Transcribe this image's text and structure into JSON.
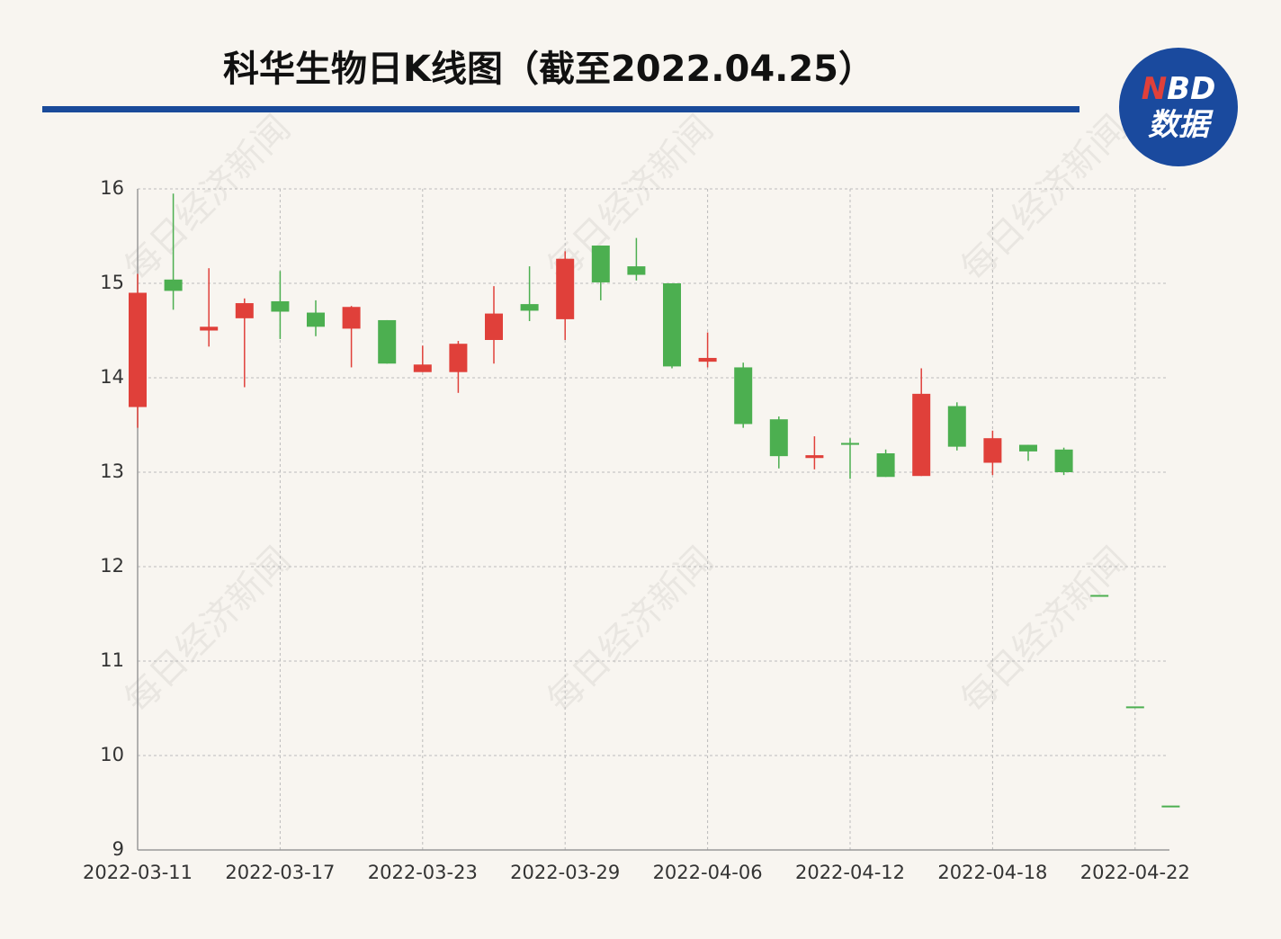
{
  "chart_data": {
    "type": "candlestick",
    "title": "科华生物日K线图（截至2022.04.25）",
    "logo": {
      "top": [
        "N",
        "BD"
      ],
      "bottom": "数据"
    },
    "watermark": "每日经济新闻",
    "categories": [
      "2022-03-11",
      null,
      null,
      null,
      "2022-03-17",
      null,
      null,
      null,
      "2022-03-23",
      null,
      null,
      null,
      "2022-03-29",
      null,
      null,
      null,
      "2022-04-06",
      null,
      null,
      null,
      "2022-04-12",
      null,
      null,
      null,
      "2022-04-18",
      null,
      null,
      null,
      "2022-04-22",
      null
    ],
    "open": [
      13.69,
      15.04,
      14.5,
      14.63,
      14.81,
      14.69,
      14.52,
      14.61,
      14.06,
      14.06,
      14.4,
      14.78,
      14.62,
      15.4,
      15.18,
      15.0,
      14.17,
      14.11,
      13.56,
      13.15,
      13.31,
      13.2,
      12.96,
      13.7,
      13.1,
      13.29,
      13.24,
      11.7,
      10.52,
      9.47
    ],
    "high": [
      15.1,
      15.95,
      15.16,
      14.84,
      15.13,
      14.82,
      14.76,
      14.61,
      14.34,
      14.39,
      14.97,
      15.18,
      15.34,
      15.4,
      15.48,
      15.0,
      14.48,
      14.16,
      13.59,
      13.38,
      13.36,
      13.24,
      14.1,
      13.74,
      13.44,
      13.29,
      13.26,
      11.7,
      10.52,
      9.47
    ],
    "low": [
      13.47,
      14.72,
      14.33,
      13.9,
      14.41,
      14.44,
      14.11,
      14.15,
      14.06,
      13.84,
      14.15,
      14.6,
      14.4,
      14.82,
      15.03,
      14.1,
      14.11,
      13.47,
      13.04,
      13.03,
      12.93,
      12.95,
      12.96,
      13.23,
      12.97,
      13.12,
      12.97,
      11.7,
      10.52,
      9.47
    ],
    "close": [
      14.9,
      14.92,
      14.54,
      14.79,
      14.7,
      14.54,
      14.75,
      14.15,
      14.14,
      14.36,
      14.68,
      14.71,
      15.26,
      15.01,
      15.09,
      14.12,
      14.21,
      13.51,
      13.17,
      13.18,
      13.29,
      12.95,
      13.83,
      13.27,
      13.36,
      13.22,
      13.0,
      11.7,
      10.52,
      9.47
    ],
    "up_color": "#e0403a",
    "down_color": "#4caf50",
    "ylim": [
      9,
      16
    ],
    "yticks": [
      9,
      10,
      11,
      12,
      13,
      14,
      15,
      16
    ],
    "grid": true
  }
}
